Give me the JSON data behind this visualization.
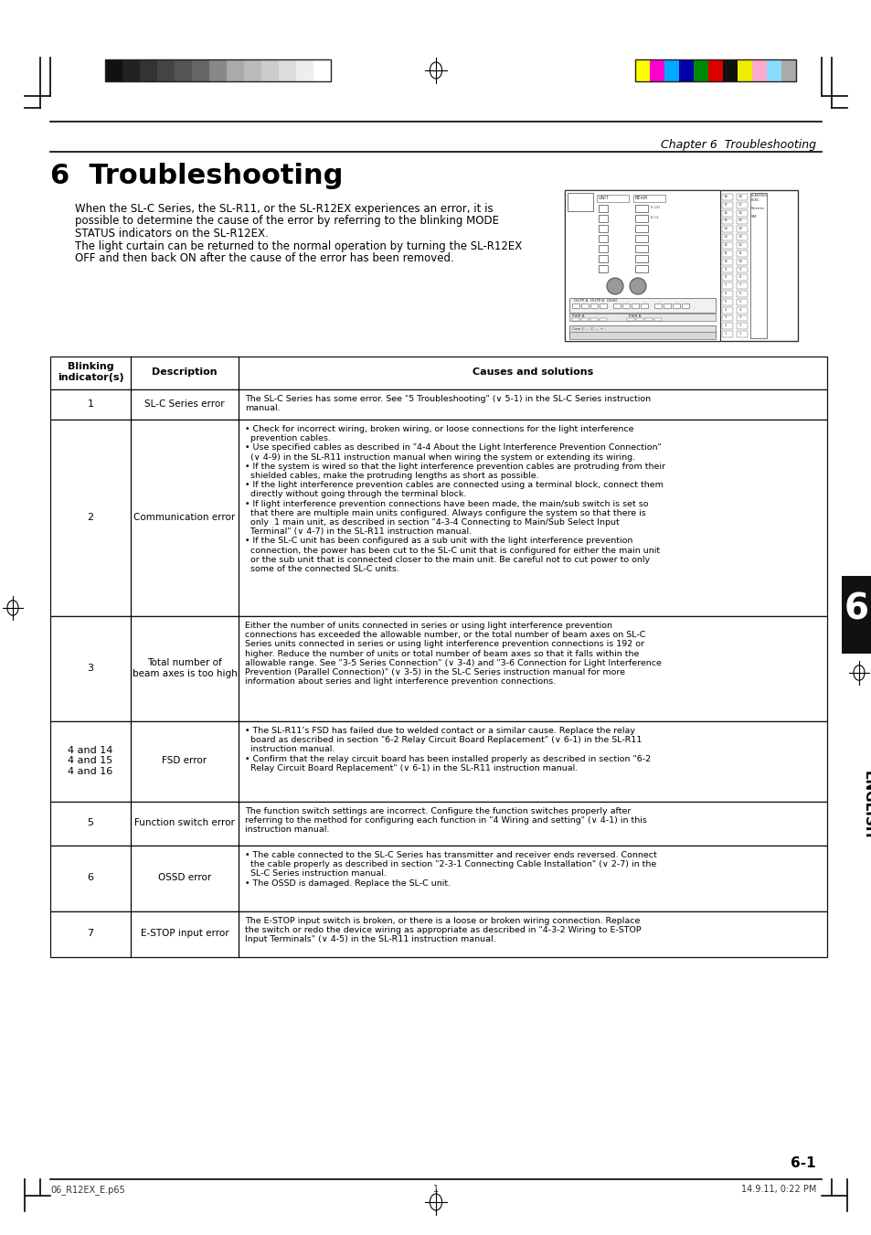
{
  "page_title": "6  Troubleshooting",
  "chapter_header": "Chapter 6  Troubleshooting",
  "intro_text_lines": [
    "When the SL-C Series, the SL-R11, or the SL-R12EX experiences an error, it is",
    "possible to determine the cause of the error by referring to the blinking MODE",
    "STATUS indicators on the SL-R12EX.",
    "The light curtain can be returned to the normal operation by turning the SL-R12EX",
    "OFF and then back ON after the cause of the error has been removed."
  ],
  "footer_left": "06_R12EX_E.p65",
  "footer_center": "1",
  "footer_right": "14.9.11, 0:22 PM",
  "page_number": "6-1",
  "rows": [
    {
      "indicator": "1",
      "description": "SL-C Series error",
      "solution": "The SL-C Series has some error. See \"5 Troubleshooting\" (∨ 5-1) in the SL-C Series instruction\nmanual."
    },
    {
      "indicator": "2",
      "description": "Communication error",
      "solution": "• Check for incorrect wiring, broken wiring, or loose connections for the light interference\n  prevention cables.\n• Use specified cables as described in \"4-4 About the Light Interference Prevention Connection\"\n  (∨ 4-9) in the SL-R11 instruction manual when wiring the system or extending its wiring.\n• If the system is wired so that the light interference prevention cables are protruding from their\n  shielded cables, make the protruding lengths as short as possible.\n• If the light interference prevention cables are connected using a terminal block, connect them\n  directly without going through the terminal block.\n• If light interference prevention connections have been made, the main/sub switch is set so\n  that there are multiple main units configured. Always configure the system so that there is\n  only  1 main unit, as described in section \"4-3-4 Connecting to Main/Sub Select Input\n  Terminal\" (∨ 4-7) in the SL-R11 instruction manual.\n• If the SL-C unit has been configured as a sub unit with the light interference prevention\n  connection, the power has been cut to the SL-C unit that is configured for either the main unit\n  or the sub unit that is connected closer to the main unit. Be careful not to cut power to only\n  some of the connected SL-C units."
    },
    {
      "indicator": "3",
      "description": "Total number of\nbeam axes is too high",
      "solution": "Either the number of units connected in series or using light interference prevention\nconnections has exceeded the allowable number, or the total number of beam axes on SL-C\nSeries units connected in series or using light interference prevention connections is 192 or\nhigher. Reduce the number of units or total number of beam axes so that it falls within the\nallowable range. See \"3-5 Series Connection\" (∨ 3-4) and \"3-6 Connection for Light Interference\nPrevention (Parallel Connection)\" (∨ 3-5) in the SL-C Series instruction manual for more\ninformation about series and light interference prevention connections."
    },
    {
      "indicator": "4 and 14\n4 and 15\n4 and 16",
      "description": "FSD error",
      "solution": "• The SL-R11’s FSD has failed due to welded contact or a similar cause. Replace the relay\n  board as described in section \"6-2 Relay Circuit Board Replacement\" (∨ 6-1) in the SL-R11\n  instruction manual.\n• Confirm that the relay circuit board has been installed properly as described in section \"6-2\n  Relay Circuit Board Replacement\" (∨ 6-1) in the SL-R11 instruction manual."
    },
    {
      "indicator": "5",
      "description": "Function switch error",
      "solution": "The function switch settings are incorrect. Configure the function switches properly after\nreferring to the method for configuring each function in \"4 Wiring and setting\" (∨ 4-1) in this\ninstruction manual."
    },
    {
      "indicator": "6",
      "description": "OSSD error",
      "solution": "• The cable connected to the SL-C Series has transmitter and receiver ends reversed. Connect\n  the cable properly as described in section \"2-3-1 Connecting Cable Installation\" (∨ 2-7) in the\n  SL-C Series instruction manual.\n• The OSSD is damaged. Replace the SL-C unit."
    },
    {
      "indicator": "7",
      "description": "E-STOP input error",
      "solution": "The E-STOP input switch is broken, or there is a loose or broken wiring connection. Replace\nthe switch or redo the device wiring as appropriate as described in \"4-3-2 Wiring to E-STOP\nInput Terminals\" (∨ 4-5) in the SL-R11 instruction manual."
    }
  ],
  "grayscale_colors": [
    "#111111",
    "#222222",
    "#333333",
    "#444444",
    "#555555",
    "#666666",
    "#888888",
    "#aaaaaa",
    "#bbbbbb",
    "#cccccc",
    "#dddddd",
    "#eeeeee",
    "#ffffff"
  ],
  "color_bars": [
    "#ffff00",
    "#ff00cc",
    "#00aaff",
    "#0000aa",
    "#008800",
    "#dd0000",
    "#111111",
    "#eeee00",
    "#ffaacc",
    "#88ddff",
    "#aaaaaa"
  ],
  "bg_color": "#ffffff"
}
